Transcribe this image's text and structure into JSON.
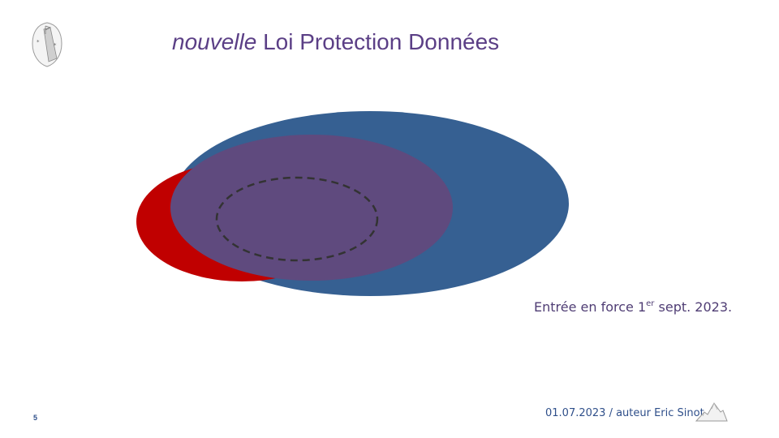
{
  "slide": {
    "title_emphasis": "nouvelle",
    "title_rest": " Loi Protection Données",
    "note_prefix": "Entrée en force 1",
    "note_superscript": "er",
    "note_suffix": " sept. 2023.",
    "page_number": "5",
    "footer": "01.07.2023 / auteur Eric Sinot"
  },
  "colors": {
    "title": "#5b3f86",
    "blue_ellipse": "#366092",
    "red_ellipse": "#c00000",
    "purple_ellipse": "#5f4a7e",
    "dashed_outline": "#333333"
  },
  "icons": {
    "logo": "crest-logo-icon",
    "footer": "mountain-icon"
  }
}
